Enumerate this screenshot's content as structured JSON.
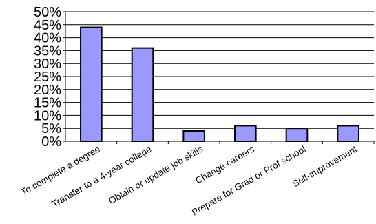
{
  "chart_data": {
    "type": "bar",
    "categories": [
      "To complete a degree",
      "Transfer to a 4-year college",
      "Obtain or update job skills",
      "Change careers",
      "Prepare for Grad or Prof school",
      "Self-improvement"
    ],
    "values": [
      44,
      36,
      4,
      6,
      5,
      6
    ],
    "ylim": [
      0,
      50
    ],
    "y_ticks": [
      "0%",
      "5%",
      "10%",
      "15%",
      "20%",
      "25%",
      "30%",
      "35%",
      "40%",
      "45%",
      "50%"
    ],
    "grid": true,
    "legend": "none",
    "colors": {
      "bar_fill": "#9999ff",
      "bar_stroke": "#000000",
      "grid": "#000000",
      "axis": "#000000"
    }
  }
}
